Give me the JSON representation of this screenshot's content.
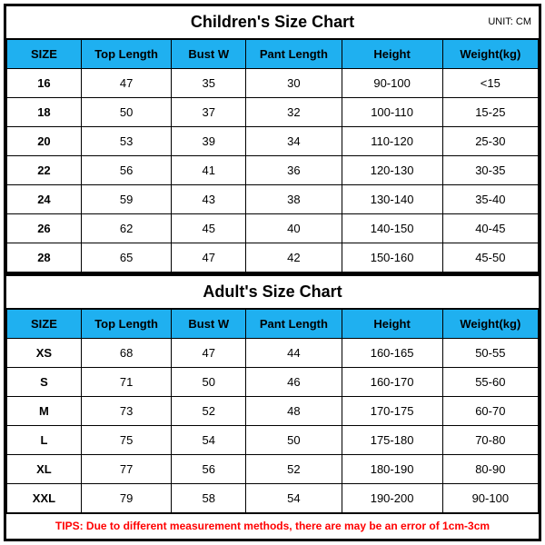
{
  "children_chart": {
    "title": "Children's Size Chart",
    "unit": "UNIT: CM",
    "header_bg": "#1fb0f0",
    "columns": [
      "SIZE",
      "Top Length",
      "Bust W",
      "Pant Length",
      "Height",
      "Weight(kg)"
    ],
    "rows": [
      [
        "16",
        "47",
        "35",
        "30",
        "90-100",
        "<15"
      ],
      [
        "18",
        "50",
        "37",
        "32",
        "100-110",
        "15-25"
      ],
      [
        "20",
        "53",
        "39",
        "34",
        "110-120",
        "25-30"
      ],
      [
        "22",
        "56",
        "41",
        "36",
        "120-130",
        "30-35"
      ],
      [
        "24",
        "59",
        "43",
        "38",
        "130-140",
        "35-40"
      ],
      [
        "26",
        "62",
        "45",
        "40",
        "140-150",
        "40-45"
      ],
      [
        "28",
        "65",
        "47",
        "42",
        "150-160",
        "45-50"
      ]
    ]
  },
  "adult_chart": {
    "title": "Adult's Size Chart",
    "header_bg": "#1fb0f0",
    "columns": [
      "SIZE",
      "Top Length",
      "Bust W",
      "Pant Length",
      "Height",
      "Weight(kg)"
    ],
    "rows": [
      [
        "XS",
        "68",
        "47",
        "44",
        "160-165",
        "50-55"
      ],
      [
        "S",
        "71",
        "50",
        "46",
        "160-170",
        "55-60"
      ],
      [
        "M",
        "73",
        "52",
        "48",
        "170-175",
        "60-70"
      ],
      [
        "L",
        "75",
        "54",
        "50",
        "175-180",
        "70-80"
      ],
      [
        "XL",
        "77",
        "56",
        "52",
        "180-190",
        "80-90"
      ],
      [
        "XXL",
        "79",
        "58",
        "54",
        "190-200",
        "90-100"
      ]
    ]
  },
  "tips": {
    "text": "TIPS: Due to different measurement methods, there are may be an error of 1cm-3cm",
    "color": "#ff0000"
  }
}
